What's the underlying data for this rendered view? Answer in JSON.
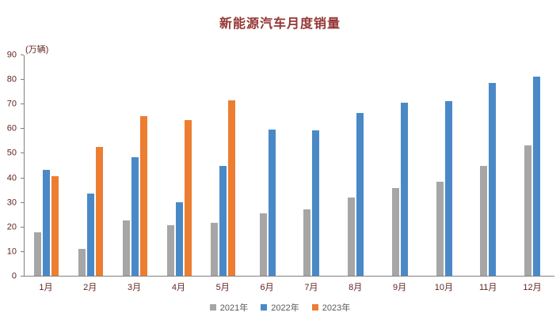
{
  "colors": {
    "title_text": "#943634",
    "axis_text": "#632423",
    "axis_line": "#808080",
    "series_2021": "#a6a6a6",
    "series_2022": "#4a89c7",
    "series_2023": "#ed7d31"
  },
  "chart_data": {
    "type": "bar",
    "title": "新能源汽车月度销量",
    "unit_label": "(万辆)",
    "xlabel": "",
    "ylabel": "",
    "categories": [
      "1月",
      "2月",
      "3月",
      "4月",
      "5月",
      "6月",
      "7月",
      "8月",
      "9月",
      "10月",
      "11月",
      "12月"
    ],
    "series": [
      {
        "name": "2021年",
        "color": "#a6a6a6",
        "values": [
          17.9,
          11.0,
          22.6,
          20.6,
          21.7,
          25.6,
          27.1,
          32.1,
          35.7,
          38.3,
          45.0,
          53.1
        ]
      },
      {
        "name": "2022年",
        "color": "#4a89c7",
        "values": [
          43.1,
          33.4,
          48.4,
          29.9,
          44.7,
          59.6,
          59.3,
          66.6,
          70.8,
          71.4,
          78.6,
          81.4
        ]
      },
      {
        "name": "2023年",
        "color": "#ed7d31",
        "values": [
          40.8,
          52.5,
          65.3,
          63.6,
          71.7,
          null,
          null,
          null,
          null,
          null,
          null,
          null
        ]
      }
    ],
    "ylim": [
      0,
      90
    ],
    "ytick_step": 10,
    "grid": false,
    "legend_position": "bottom"
  }
}
